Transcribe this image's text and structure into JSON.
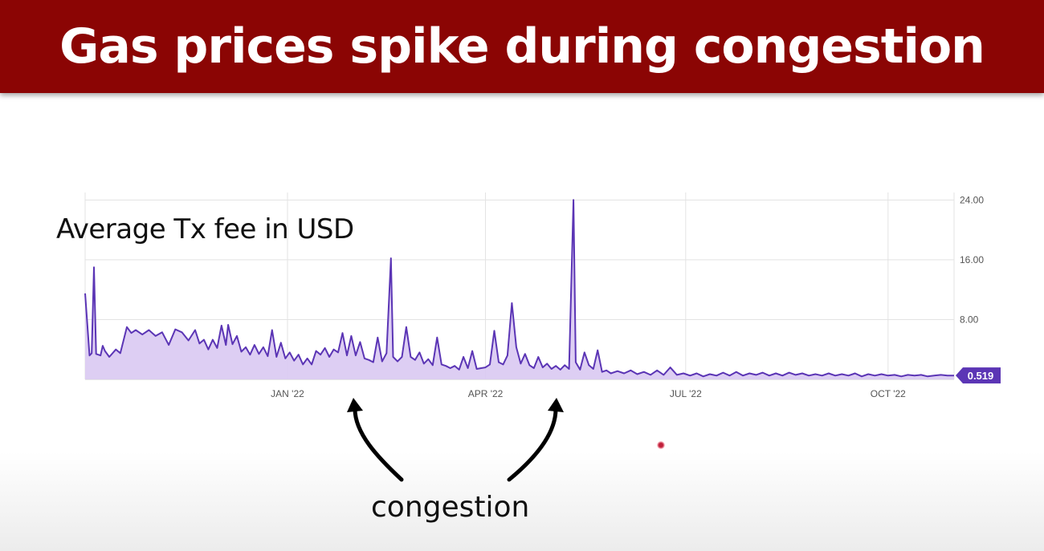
{
  "slide": {
    "title": "Gas prices spike during congestion",
    "annotation": "congestion"
  },
  "chart_data": {
    "type": "area",
    "title": "Average Tx fee in USD",
    "x_range": [
      "2021-10-01",
      "2022-10-31"
    ],
    "x_ticks": [
      {
        "date": "2022-01-01",
        "label": "JAN '22"
      },
      {
        "date": "2022-04-01",
        "label": "APR '22"
      },
      {
        "date": "2022-07-01",
        "label": "JUL '22"
      },
      {
        "date": "2022-10-01",
        "label": "OCT '22"
      }
    ],
    "ylim": [
      0,
      25
    ],
    "y_ticks": [
      {
        "value": 8,
        "label": "8.00"
      },
      {
        "value": 16,
        "label": "16.00"
      },
      {
        "value": 24,
        "label": "24.00"
      }
    ],
    "grid": true,
    "last_value_label": "0.519",
    "colors": {
      "line": "#5b35b5",
      "fill": "#d9c9f2",
      "grid": "#e3e3e3",
      "badge": "#5b35b5"
    },
    "series": [
      {
        "values": [
          [
            "2021-10-01",
            11.5
          ],
          [
            "2021-10-03",
            3.2
          ],
          [
            "2021-10-04",
            3.5
          ],
          [
            "2021-10-05",
            15.0
          ],
          [
            "2021-10-06",
            3.4
          ],
          [
            "2021-10-08",
            3.2
          ],
          [
            "2021-10-09",
            4.5
          ],
          [
            "2021-10-10",
            3.8
          ],
          [
            "2021-10-12",
            3.0
          ],
          [
            "2021-10-15",
            4.0
          ],
          [
            "2021-10-17",
            3.5
          ],
          [
            "2021-10-20",
            7.0
          ],
          [
            "2021-10-22",
            6.2
          ],
          [
            "2021-10-24",
            6.6
          ],
          [
            "2021-10-27",
            6.0
          ],
          [
            "2021-10-30",
            6.6
          ],
          [
            "2021-11-02",
            5.8
          ],
          [
            "2021-11-05",
            6.3
          ],
          [
            "2021-11-08",
            4.6
          ],
          [
            "2021-11-11",
            6.7
          ],
          [
            "2021-11-14",
            6.3
          ],
          [
            "2021-11-17",
            5.2
          ],
          [
            "2021-11-20",
            6.6
          ],
          [
            "2021-11-22",
            4.8
          ],
          [
            "2021-11-24",
            5.3
          ],
          [
            "2021-11-26",
            4.0
          ],
          [
            "2021-11-28",
            5.3
          ],
          [
            "2021-11-30",
            4.2
          ],
          [
            "2021-12-02",
            7.2
          ],
          [
            "2021-12-04",
            4.6
          ],
          [
            "2021-12-05",
            7.3
          ],
          [
            "2021-12-07",
            4.7
          ],
          [
            "2021-12-09",
            5.8
          ],
          [
            "2021-12-11",
            3.7
          ],
          [
            "2021-12-13",
            4.3
          ],
          [
            "2021-12-15",
            3.3
          ],
          [
            "2021-12-17",
            4.6
          ],
          [
            "2021-12-19",
            3.4
          ],
          [
            "2021-12-21",
            4.3
          ],
          [
            "2021-12-23",
            3.1
          ],
          [
            "2021-12-25",
            6.6
          ],
          [
            "2021-12-27",
            3.0
          ],
          [
            "2021-12-29",
            4.9
          ],
          [
            "2021-12-31",
            2.8
          ],
          [
            "2022-01-02",
            3.6
          ],
          [
            "2022-01-04",
            2.5
          ],
          [
            "2022-01-06",
            3.3
          ],
          [
            "2022-01-08",
            2.0
          ],
          [
            "2022-01-10",
            2.8
          ],
          [
            "2022-01-12",
            2.0
          ],
          [
            "2022-01-14",
            3.8
          ],
          [
            "2022-01-16",
            3.3
          ],
          [
            "2022-01-18",
            4.2
          ],
          [
            "2022-01-20",
            3.0
          ],
          [
            "2022-01-22",
            4.0
          ],
          [
            "2022-01-24",
            3.6
          ],
          [
            "2022-01-26",
            6.2
          ],
          [
            "2022-01-28",
            3.2
          ],
          [
            "2022-01-30",
            5.8
          ],
          [
            "2022-02-01",
            3.2
          ],
          [
            "2022-02-03",
            5.0
          ],
          [
            "2022-02-05",
            2.8
          ],
          [
            "2022-02-07",
            2.6
          ],
          [
            "2022-02-09",
            2.3
          ],
          [
            "2022-02-11",
            5.6
          ],
          [
            "2022-02-13",
            2.4
          ],
          [
            "2022-02-15",
            3.5
          ],
          [
            "2022-02-17",
            16.2
          ],
          [
            "2022-02-18",
            3.0
          ],
          [
            "2022-02-20",
            2.4
          ],
          [
            "2022-02-22",
            3.0
          ],
          [
            "2022-02-24",
            7.0
          ],
          [
            "2022-02-26",
            3.0
          ],
          [
            "2022-02-28",
            2.6
          ],
          [
            "2022-03-02",
            3.6
          ],
          [
            "2022-03-04",
            2.1
          ],
          [
            "2022-03-06",
            2.7
          ],
          [
            "2022-03-08",
            1.9
          ],
          [
            "2022-03-10",
            5.6
          ],
          [
            "2022-03-12",
            2.0
          ],
          [
            "2022-03-14",
            1.8
          ],
          [
            "2022-03-16",
            1.5
          ],
          [
            "2022-03-18",
            1.8
          ],
          [
            "2022-03-20",
            1.3
          ],
          [
            "2022-03-22",
            3.0
          ],
          [
            "2022-03-24",
            1.5
          ],
          [
            "2022-03-26",
            3.8
          ],
          [
            "2022-03-28",
            1.4
          ],
          [
            "2022-03-30",
            1.5
          ],
          [
            "2022-04-01",
            1.6
          ],
          [
            "2022-04-03",
            2.0
          ],
          [
            "2022-04-05",
            6.5
          ],
          [
            "2022-04-07",
            2.3
          ],
          [
            "2022-04-09",
            2.0
          ],
          [
            "2022-04-11",
            3.2
          ],
          [
            "2022-04-13",
            10.2
          ],
          [
            "2022-04-15",
            4.3
          ],
          [
            "2022-04-17",
            2.1
          ],
          [
            "2022-04-19",
            3.4
          ],
          [
            "2022-04-21",
            1.9
          ],
          [
            "2022-04-23",
            1.5
          ],
          [
            "2022-04-25",
            3.0
          ],
          [
            "2022-04-27",
            1.6
          ],
          [
            "2022-04-29",
            2.1
          ],
          [
            "2022-05-01",
            1.4
          ],
          [
            "2022-05-03",
            1.8
          ],
          [
            "2022-05-05",
            1.3
          ],
          [
            "2022-05-07",
            1.9
          ],
          [
            "2022-05-09",
            1.4
          ],
          [
            "2022-05-11",
            24.0
          ],
          [
            "2022-05-12",
            2.3
          ],
          [
            "2022-05-14",
            1.3
          ],
          [
            "2022-05-16",
            3.6
          ],
          [
            "2022-05-18",
            1.9
          ],
          [
            "2022-05-20",
            1.4
          ],
          [
            "2022-05-22",
            3.9
          ],
          [
            "2022-05-24",
            1.0
          ],
          [
            "2022-05-26",
            1.2
          ],
          [
            "2022-05-28",
            0.8
          ],
          [
            "2022-05-31",
            1.1
          ],
          [
            "2022-06-03",
            0.8
          ],
          [
            "2022-06-06",
            1.2
          ],
          [
            "2022-06-09",
            0.7
          ],
          [
            "2022-06-12",
            1.0
          ],
          [
            "2022-06-15",
            0.6
          ],
          [
            "2022-06-18",
            1.2
          ],
          [
            "2022-06-21",
            0.6
          ],
          [
            "2022-06-24",
            1.6
          ],
          [
            "2022-06-27",
            0.6
          ],
          [
            "2022-06-30",
            0.8
          ],
          [
            "2022-07-03",
            0.5
          ],
          [
            "2022-07-06",
            0.8
          ],
          [
            "2022-07-09",
            0.4
          ],
          [
            "2022-07-12",
            0.7
          ],
          [
            "2022-07-15",
            0.5
          ],
          [
            "2022-07-18",
            0.9
          ],
          [
            "2022-07-21",
            0.5
          ],
          [
            "2022-07-24",
            1.0
          ],
          [
            "2022-07-27",
            0.5
          ],
          [
            "2022-07-30",
            0.8
          ],
          [
            "2022-08-02",
            0.6
          ],
          [
            "2022-08-05",
            0.9
          ],
          [
            "2022-08-08",
            0.5
          ],
          [
            "2022-08-11",
            0.8
          ],
          [
            "2022-08-14",
            0.5
          ],
          [
            "2022-08-17",
            0.9
          ],
          [
            "2022-08-20",
            0.6
          ],
          [
            "2022-08-23",
            0.8
          ],
          [
            "2022-08-26",
            0.5
          ],
          [
            "2022-08-29",
            0.7
          ],
          [
            "2022-09-01",
            0.5
          ],
          [
            "2022-09-04",
            0.8
          ],
          [
            "2022-09-07",
            0.5
          ],
          [
            "2022-09-10",
            0.7
          ],
          [
            "2022-09-13",
            0.5
          ],
          [
            "2022-09-16",
            0.8
          ],
          [
            "2022-09-19",
            0.4
          ],
          [
            "2022-09-22",
            0.7
          ],
          [
            "2022-09-25",
            0.5
          ],
          [
            "2022-09-28",
            0.7
          ],
          [
            "2022-10-01",
            0.5
          ],
          [
            "2022-10-04",
            0.6
          ],
          [
            "2022-10-07",
            0.4
          ],
          [
            "2022-10-10",
            0.6
          ],
          [
            "2022-10-13",
            0.5
          ],
          [
            "2022-10-16",
            0.6
          ],
          [
            "2022-10-19",
            0.4
          ],
          [
            "2022-10-22",
            0.5
          ],
          [
            "2022-10-25",
            0.6
          ],
          [
            "2022-10-28",
            0.5
          ],
          [
            "2022-10-31",
            0.519
          ]
        ]
      }
    ]
  }
}
